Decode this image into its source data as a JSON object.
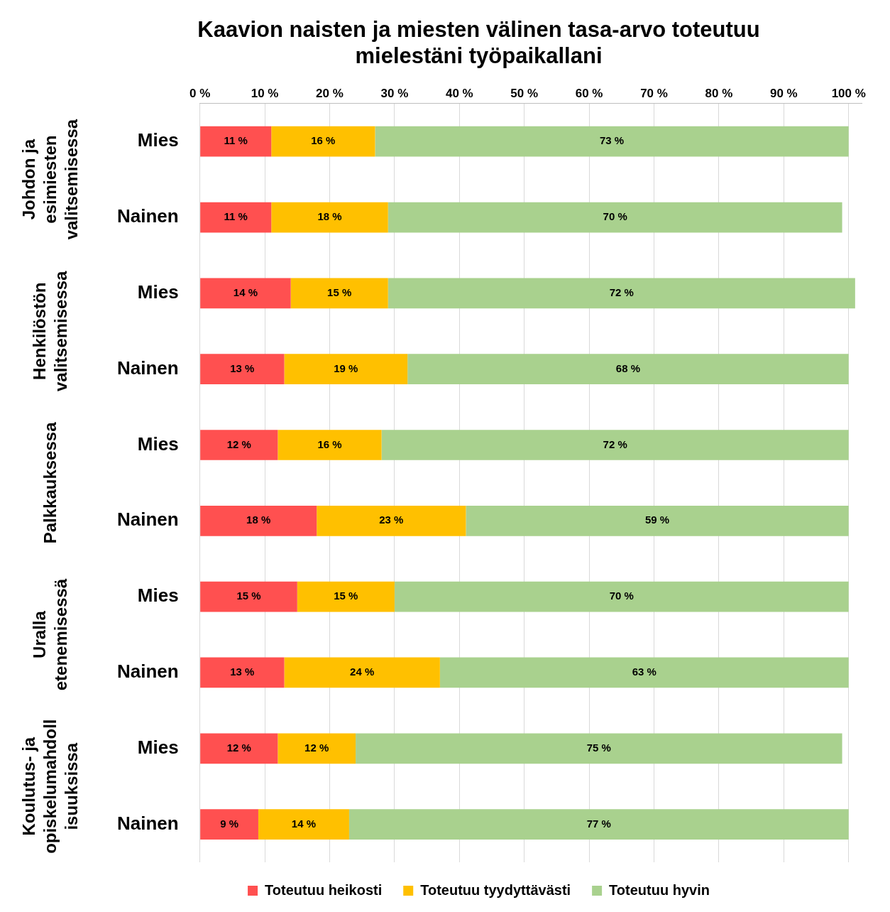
{
  "chart_data": {
    "type": "bar",
    "orientation": "horizontal",
    "stacked": true,
    "title": "Kaavion naisten ja miesten välinen tasa-arvo toteutuu mielestäni työpaikallani",
    "categories": [
      "Mies",
      "Nainen",
      "Mies",
      "Nainen",
      "Mies",
      "Nainen",
      "Mies",
      "Nainen",
      "Mies",
      "Nainen"
    ],
    "annotations": [
      "Johdon ja esimiesten valitsemisessa",
      "Henkilöstön valitsemisessa",
      "Palkkauksessa",
      "Uralla etenemisessä",
      "Koulutus- ja opiskelumahdollisuuksissa"
    ],
    "series": [
      {
        "name": "Toteutuu heikosti",
        "color": "#ff5050",
        "values": [
          11,
          11,
          14,
          13,
          12,
          18,
          15,
          13,
          12,
          9
        ],
        "value_labels": [
          "11 %",
          "11 %",
          "14 %",
          "13 %",
          "12 %",
          "18 %",
          "15 %",
          "13 %",
          "12 %",
          "9 %"
        ]
      },
      {
        "name": "Toteutuu tyydyttävästi",
        "color": "#ffc000",
        "values": [
          16,
          18,
          15,
          19,
          16,
          23,
          15,
          24,
          12,
          14
        ],
        "value_labels": [
          "16 %",
          "18 %",
          "15 %",
          "19 %",
          "16 %",
          "23 %",
          "15 %",
          "24 %",
          "12 %",
          "14 %"
        ]
      },
      {
        "name": "Toteutuu hyvin",
        "color": "#a9d18e",
        "values": [
          73,
          70,
          72,
          68,
          72,
          59,
          70,
          63,
          75,
          77
        ],
        "value_labels": [
          "73 %",
          "70 %",
          "72 %",
          "68 %",
          "72 %",
          "59 %",
          "70 %",
          "63 %",
          "75 %",
          "77 %"
        ]
      }
    ],
    "xlim": [
      0,
      102
    ],
    "xticks": [
      {
        "value": 0,
        "label": "0 %"
      },
      {
        "value": 10,
        "label": "10 %"
      },
      {
        "value": 20,
        "label": "20 %"
      },
      {
        "value": 30,
        "label": "30 %"
      },
      {
        "value": 40,
        "label": "40 %"
      },
      {
        "value": 50,
        "label": "50 %"
      },
      {
        "value": 60,
        "label": "60 %"
      },
      {
        "value": 70,
        "label": "70 %"
      },
      {
        "value": 80,
        "label": "80 %"
      },
      {
        "value": 90,
        "label": "90 %"
      },
      {
        "value": 100,
        "label": "100 %"
      }
    ],
    "grid": "x",
    "legend": "bottom"
  }
}
